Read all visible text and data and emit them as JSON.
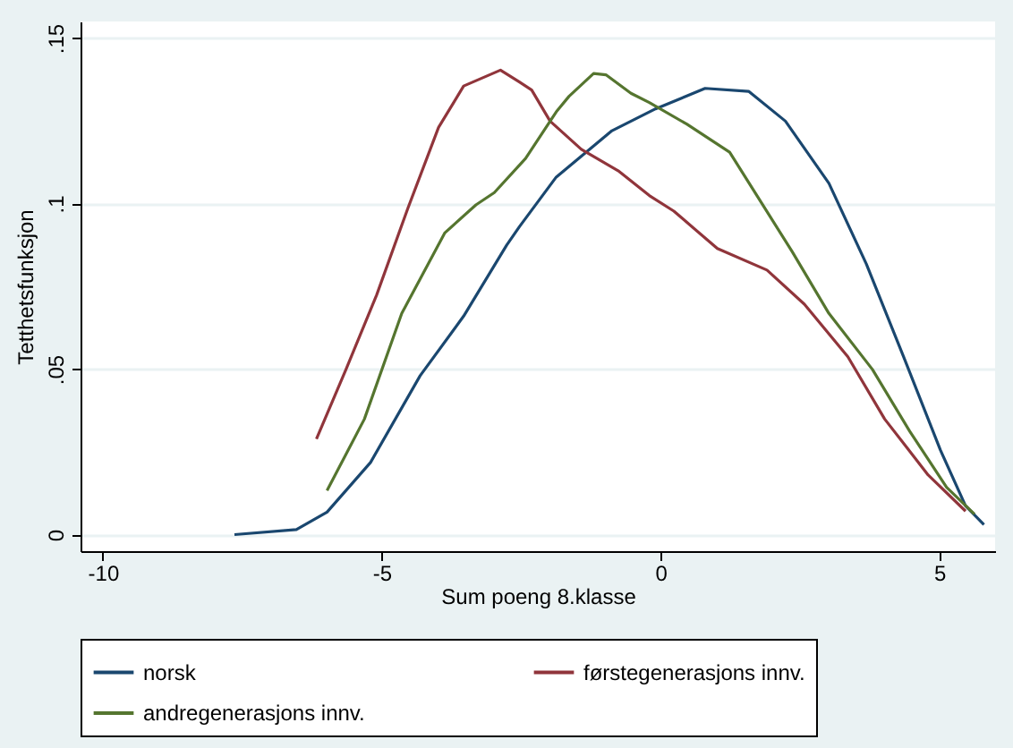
{
  "chart_data": {
    "type": "line",
    "xlabel": "Sum poeng 8.klasse",
    "ylabel": "Tetthetsfunksjon",
    "xlim": [
      -10.4,
      6.0
    ],
    "ylim": [
      -0.005,
      0.155
    ],
    "xticks": [
      -10,
      -5,
      0,
      5
    ],
    "yticks": [
      0,
      {
        "value": 0.05,
        "label": ".05"
      },
      {
        "value": 0.1,
        "label": ".1"
      },
      {
        "value": 0.15,
        "label": ".15"
      }
    ],
    "grid": "y",
    "legend": "bottom",
    "series": [
      {
        "name": "norsk",
        "color": "#1a476f",
        "x": [
          -7.64,
          -6.53,
          -5.98,
          -5.2,
          -4.31,
          -3.53,
          -2.76,
          -2.53,
          -1.87,
          -0.87,
          -0.09,
          0.8,
          1.58,
          2.24,
          3.02,
          3.69,
          4.36,
          5.02,
          5.47,
          5.8
        ],
        "values": [
          0.0,
          0.0015,
          0.0068,
          0.0218,
          0.048,
          0.066,
          0.0874,
          0.093,
          0.108,
          0.122,
          0.1286,
          0.1348,
          0.1339,
          0.1249,
          0.1061,
          0.0818,
          0.0537,
          0.0255,
          0.0087,
          0.003
        ]
      },
      {
        "name": "førstegenerasjons innv.",
        "color": "#90353b",
        "x": [
          -6.17,
          -5.64,
          -5.09,
          -4.53,
          -3.98,
          -3.53,
          -2.87,
          -2.53,
          -2.31,
          -1.98,
          -1.42,
          -0.76,
          -0.2,
          0.24,
          1.02,
          1.91,
          2.58,
          3.36,
          4.02,
          4.8,
          5.47
        ],
        "values": [
          0.0289,
          0.0499,
          0.0724,
          0.0986,
          0.123,
          0.1355,
          0.1403,
          0.1367,
          0.1343,
          0.1249,
          0.1164,
          0.1099,
          0.1024,
          0.0977,
          0.0864,
          0.0799,
          0.0696,
          0.0537,
          0.0349,
          0.018,
          0.0071
        ]
      },
      {
        "name": "andregenerasjons innv.",
        "color": "#55752f",
        "x": [
          -5.98,
          -5.31,
          -4.64,
          -3.87,
          -3.31,
          -2.98,
          -2.42,
          -1.87,
          -1.64,
          -1.2,
          -0.98,
          -0.53,
          -0.2,
          0.47,
          1.24,
          1.8,
          2.36,
          3.02,
          3.8,
          4.47,
          5.13,
          5.63
        ],
        "values": [
          0.0133,
          0.0349,
          0.0668,
          0.0911,
          0.0996,
          0.1033,
          0.1136,
          0.1277,
          0.1324,
          0.1393,
          0.1389,
          0.1333,
          0.1305,
          0.124,
          0.1155,
          0.1005,
          0.0855,
          0.0668,
          0.0499,
          0.0312,
          0.0143,
          0.0062
        ]
      }
    ]
  }
}
